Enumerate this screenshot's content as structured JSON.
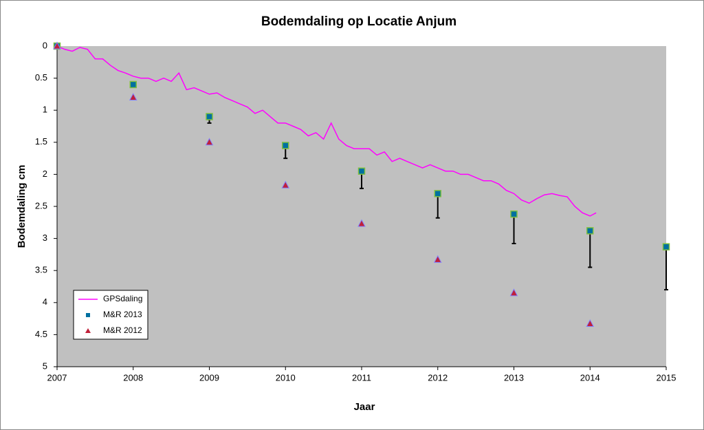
{
  "chart_data": {
    "type": "line",
    "title": "Bodemdaling op Locatie Anjum",
    "x_label": "Jaar",
    "y_label": "Bodemdaling cm",
    "xlim": [
      2007,
      2015
    ],
    "xticks": [
      2007,
      2008,
      2009,
      2010,
      2011,
      2012,
      2013,
      2014,
      2015
    ],
    "ylim": [
      0,
      5
    ],
    "yticks": [
      0,
      0.5,
      1,
      1.5,
      2,
      2.5,
      3,
      3.5,
      4,
      4.5,
      5
    ],
    "y_inverted": true,
    "legend": "lower-left",
    "series": [
      {
        "name": "GPSdaling",
        "color": "#ff00ff",
        "marker": "line",
        "x": [
          2007.0,
          2007.1,
          2007.2,
          2007.3,
          2007.4,
          2007.5,
          2007.6,
          2007.7,
          2007.8,
          2007.9,
          2008.0,
          2008.1,
          2008.2,
          2008.3,
          2008.4,
          2008.5,
          2008.6,
          2008.7,
          2008.8,
          2008.9,
          2009.0,
          2009.1,
          2009.2,
          2009.3,
          2009.4,
          2009.5,
          2009.6,
          2009.7,
          2009.8,
          2009.9,
          2010.0,
          2010.1,
          2010.2,
          2010.3,
          2010.4,
          2010.5,
          2010.6,
          2010.7,
          2010.8,
          2010.9,
          2011.0,
          2011.1,
          2011.2,
          2011.3,
          2011.4,
          2011.5,
          2011.6,
          2011.7,
          2011.8,
          2011.9,
          2012.0,
          2012.1,
          2012.2,
          2012.3,
          2012.4,
          2012.5,
          2012.6,
          2012.7,
          2012.8,
          2012.9,
          2013.0,
          2013.1,
          2013.2,
          2013.3,
          2013.4,
          2013.5,
          2013.6,
          2013.7,
          2013.8,
          2013.9,
          2014.0,
          2014.08
        ],
        "values": [
          0,
          0.05,
          0.08,
          0.02,
          0.05,
          0.2,
          0.2,
          0.3,
          0.38,
          0.42,
          0.47,
          0.5,
          0.5,
          0.55,
          0.5,
          0.55,
          0.42,
          0.68,
          0.65,
          0.7,
          0.75,
          0.73,
          0.8,
          0.85,
          0.9,
          0.95,
          1.05,
          1.0,
          1.1,
          1.2,
          1.2,
          1.25,
          1.3,
          1.4,
          1.35,
          1.45,
          1.2,
          1.45,
          1.55,
          1.6,
          1.6,
          1.6,
          1.7,
          1.65,
          1.8,
          1.75,
          1.8,
          1.85,
          1.9,
          1.85,
          1.9,
          1.95,
          1.95,
          2.0,
          2.0,
          2.05,
          2.1,
          2.1,
          2.15,
          2.25,
          2.3,
          2.4,
          2.45,
          2.38,
          2.32,
          2.3,
          2.33,
          2.35,
          2.5,
          2.6,
          2.65,
          2.6
        ]
      },
      {
        "name": "M&R 2013",
        "color": "#0070a0",
        "marker": "square",
        "x": [
          2007,
          2008,
          2009,
          2010,
          2011,
          2012,
          2013,
          2014,
          2015
        ],
        "values": [
          0,
          0.6,
          1.1,
          1.55,
          1.95,
          2.3,
          2.62,
          2.88,
          3.13
        ],
        "errors": [
          null,
          null,
          0.1,
          0.2,
          0.27,
          0.38,
          0.46,
          0.57,
          0.67
        ]
      },
      {
        "name": "M&R 2012",
        "color": "#c0203a",
        "marker": "triangle",
        "x": [
          2007,
          2008,
          2009,
          2010,
          2011,
          2012,
          2013,
          2014
        ],
        "values": [
          0,
          0.8,
          1.5,
          2.17,
          2.77,
          3.33,
          3.85,
          4.33
        ]
      }
    ]
  }
}
